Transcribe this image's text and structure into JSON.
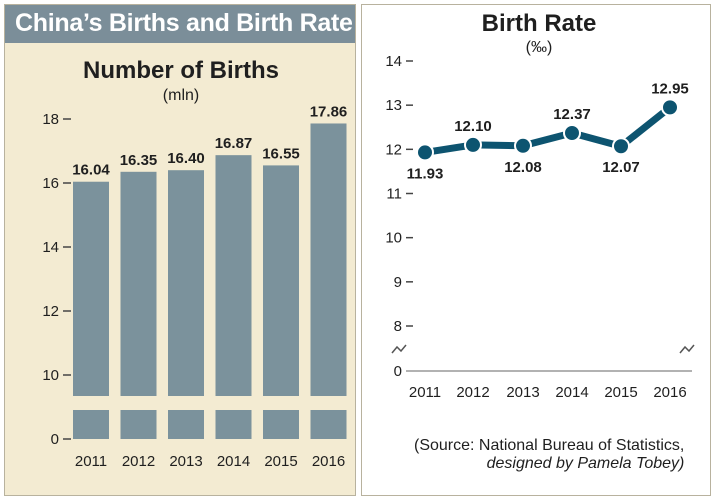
{
  "header": {
    "title": "China’s Births and Birth Rate"
  },
  "colors": {
    "bar": "#7b929c",
    "line": "#0d5470",
    "panel_bg": "#f3ebd2",
    "banner_bg": "#7b8e99",
    "text": "#1f1f1f"
  },
  "source": {
    "line1": "(Source: National Bureau of Statistics,",
    "line2": "designed by Pamela Tobey)"
  },
  "chart_data": [
    {
      "type": "bar",
      "title": "Number of Births",
      "subtitle": "(mln)",
      "categories": [
        "2011",
        "2012",
        "2013",
        "2014",
        "2015",
        "2016"
      ],
      "values": [
        16.04,
        16.35,
        16.4,
        16.87,
        16.55,
        17.86
      ],
      "labels": [
        "16.04",
        "16.35",
        "16.40",
        "16.87",
        "16.55",
        "17.86"
      ],
      "yticks": [
        "18",
        "16",
        "14",
        "12",
        "10",
        "0"
      ],
      "ylim": [
        0,
        18
      ],
      "axis_break": true,
      "grid": false
    },
    {
      "type": "line",
      "title": "Birth Rate",
      "subtitle": "(‰)",
      "categories": [
        "2011",
        "2012",
        "2013",
        "2014",
        "2015",
        "2016"
      ],
      "values": [
        11.93,
        12.1,
        12.08,
        12.37,
        12.07,
        12.95
      ],
      "labels": [
        "11.93",
        "12.10",
        "12.08",
        "12.37",
        "12.07",
        "12.95"
      ],
      "yticks": [
        "14",
        "13",
        "12",
        "11",
        "10",
        "9",
        "8",
        "0"
      ],
      "ylim": [
        0,
        14
      ],
      "axis_break": true,
      "grid": false
    }
  ]
}
